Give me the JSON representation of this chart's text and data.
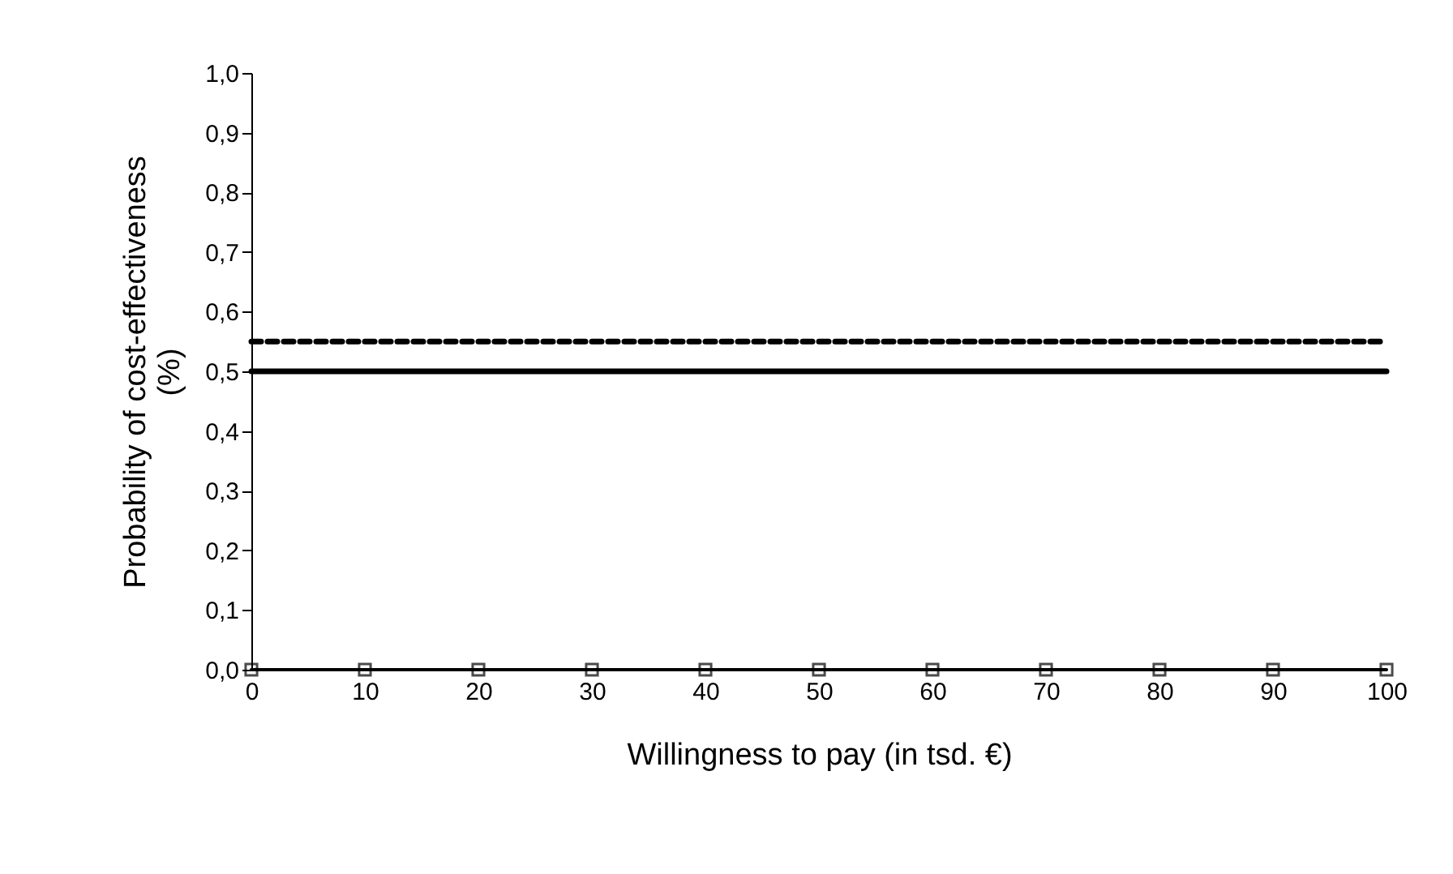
{
  "chart_data": {
    "type": "line",
    "xlabel": "Willingness to pay (in tsd. €)",
    "ylabel": "Probability of cost-effectiveness (%)",
    "x": [
      0,
      10,
      20,
      30,
      40,
      50,
      60,
      70,
      80,
      90,
      100
    ],
    "series": [
      {
        "color": "#000000",
        "line_style": "dashed",
        "marker": "none",
        "values": [
          0.55,
          0.55,
          0.55,
          0.55,
          0.55,
          0.55,
          0.55,
          0.55,
          0.55,
          0.55,
          0.55
        ]
      },
      {
        "color": "#000000",
        "line_style": "solid",
        "marker": "none",
        "values": [
          0.5,
          0.5,
          0.5,
          0.5,
          0.5,
          0.5,
          0.5,
          0.5,
          0.5,
          0.5,
          0.5
        ]
      },
      {
        "color": "#000000",
        "line_style": "solid",
        "marker": "square",
        "values": [
          0,
          0,
          0,
          0,
          0,
          0,
          0,
          0,
          0,
          0,
          0
        ]
      }
    ],
    "xlim": [
      0,
      100
    ],
    "xticks": [
      0,
      10,
      20,
      30,
      40,
      50,
      60,
      70,
      80,
      90,
      100
    ],
    "ylim": [
      0,
      1
    ],
    "yticks": [
      {
        "value": 0,
        "label": "0,0"
      },
      {
        "value": 0.1,
        "label": "0,1"
      },
      {
        "value": 0.2,
        "label": "0,2"
      },
      {
        "value": 0.3,
        "label": "0,3"
      },
      {
        "value": 0.4,
        "label": "0,4"
      },
      {
        "value": 0.5,
        "label": "0,5"
      },
      {
        "value": 0.6,
        "label": "0,6"
      },
      {
        "value": 0.7,
        "label": "0,7"
      },
      {
        "value": 0.8,
        "label": "0,8"
      },
      {
        "value": 0.9,
        "label": "0,9"
      },
      {
        "value": 1,
        "label": "1,0"
      }
    ],
    "grid": false
  }
}
